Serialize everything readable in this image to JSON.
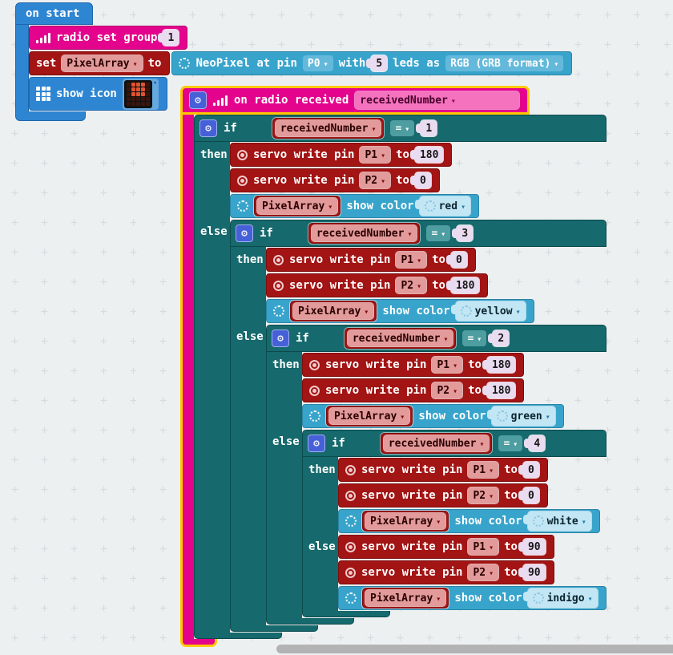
{
  "colors": {
    "bg": "#EDF0F1",
    "basic_blue": "#2E86D2",
    "radio_pink": "#E4038C",
    "pins_red": "#A31414",
    "logic_teal": "#16696C",
    "neopixel_blue": "#38A4CC",
    "selection_outline": "#FFC800",
    "led_on": "#E0532F",
    "scrollbar": "#B3B3B3"
  },
  "icons": {
    "gear": "⚙",
    "caret": "▾",
    "signal": "ascending-bars",
    "servo": "double-circle",
    "neopixel_ring": "dotted-circle",
    "grid": "3x3-squares"
  },
  "labels": {
    "on_start": "on start",
    "radio_set_group": "radio set group",
    "set": "set",
    "to": "to",
    "show_icon": "show icon",
    "neopixel_at_pin": "NeoPixel at pin",
    "with": "with",
    "leds_as": "leds as",
    "on_radio_received": "on radio received",
    "if": "if",
    "then": "then",
    "else": "else",
    "eq": "=",
    "servo_write_pin": "servo write pin",
    "show_color": "show color",
    "variable": "PixelArray"
  },
  "on_start": {
    "radio_group": "1",
    "set_variable": "PixelArray",
    "neopixel": {
      "pin": "P0",
      "count": "5",
      "format": "RGB (GRB format)"
    },
    "show_icon": {
      "grid": [
        [
          0,
          1,
          1,
          1,
          0
        ],
        [
          0,
          1,
          1,
          1,
          0
        ],
        [
          0,
          1,
          1,
          1,
          0
        ],
        [
          0,
          0,
          0,
          0,
          0
        ],
        [
          0,
          0,
          0,
          0,
          0
        ]
      ]
    }
  },
  "on_radio": {
    "param": "receivedNumber",
    "branches": [
      {
        "var": "receivedNumber",
        "op": "=",
        "value": "1",
        "color": "red",
        "rows": [
          {
            "pin": "P1",
            "to": "180"
          },
          {
            "pin": "P2",
            "to": "0"
          }
        ]
      },
      {
        "var": "receivedNumber",
        "op": "=",
        "value": "3",
        "color": "yellow",
        "rows": [
          {
            "pin": "P1",
            "to": "0"
          },
          {
            "pin": "P2",
            "to": "180"
          }
        ]
      },
      {
        "var": "receivedNumber",
        "op": "=",
        "value": "2",
        "color": "green",
        "rows": [
          {
            "pin": "P1",
            "to": "180"
          },
          {
            "pin": "P2",
            "to": "180"
          }
        ]
      },
      {
        "var": "receivedNumber",
        "op": "=",
        "value": "4",
        "color": "white",
        "rows": [
          {
            "pin": "P1",
            "to": "0"
          },
          {
            "pin": "P2",
            "to": "0"
          }
        ]
      }
    ],
    "else_rows": [
      {
        "pin": "P1",
        "to": "90"
      },
      {
        "pin": "P2",
        "to": "90"
      }
    ],
    "else_color": "indigo"
  }
}
